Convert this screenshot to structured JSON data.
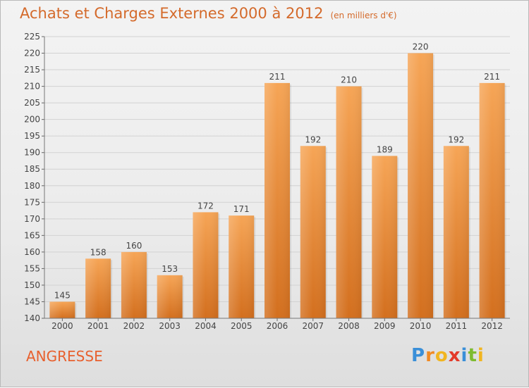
{
  "title": "Achats et Charges Externes 2000 à 2012",
  "subtitle": "(en milliers d'€)",
  "entity_name": "ANGRESSE",
  "logo": {
    "text": "Proxiti",
    "letters": [
      "P",
      "r",
      "o",
      "x",
      "i",
      "t",
      "i"
    ],
    "colors": [
      "#3a8fd8",
      "#f08a24",
      "#f1b520",
      "#e33a2a",
      "#3a8fd8",
      "#7dbb30",
      "#f1b520"
    ]
  },
  "chart_data": {
    "type": "bar",
    "categories": [
      "2000",
      "2001",
      "2002",
      "2003",
      "2004",
      "2005",
      "2006",
      "2007",
      "2008",
      "2009",
      "2010",
      "2011",
      "2012"
    ],
    "values": [
      145,
      158,
      160,
      153,
      172,
      171,
      211,
      192,
      210,
      189,
      220,
      192,
      211
    ],
    "ylim": [
      140,
      225
    ],
    "yticks": [
      140,
      145,
      150,
      155,
      160,
      165,
      170,
      175,
      180,
      185,
      190,
      195,
      200,
      205,
      210,
      215,
      220,
      225
    ],
    "grid": true,
    "bar_color": "#f19a45"
  }
}
